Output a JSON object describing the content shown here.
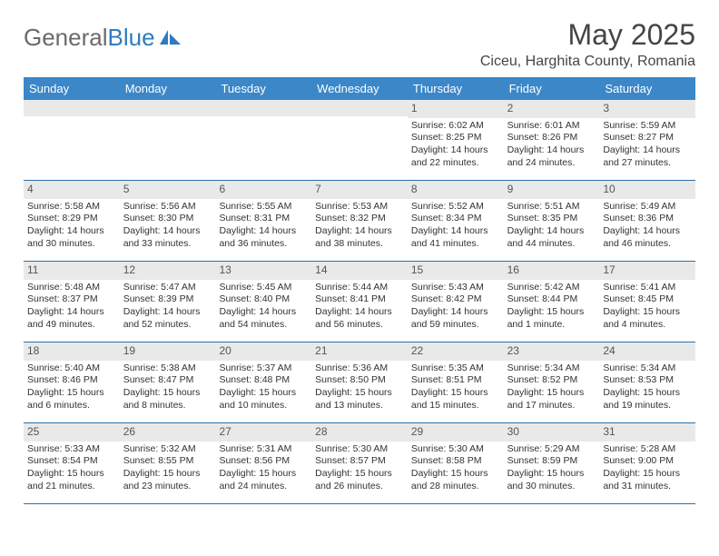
{
  "logo": {
    "text1": "General",
    "text2": "Blue"
  },
  "title": "May 2025",
  "location": "Ciceu, Harghita County, Romania",
  "colors": {
    "header_bg": "#3b87c8",
    "header_text": "#ffffff",
    "daynum_bg": "#e9e9e9",
    "week_border": "#2f6fa8",
    "logo_gray": "#6a6a6a",
    "logo_blue": "#2f7bbf"
  },
  "weekdays": [
    "Sunday",
    "Monday",
    "Tuesday",
    "Wednesday",
    "Thursday",
    "Friday",
    "Saturday"
  ],
  "weeks": [
    [
      {
        "num": "",
        "lines": []
      },
      {
        "num": "",
        "lines": []
      },
      {
        "num": "",
        "lines": []
      },
      {
        "num": "",
        "lines": []
      },
      {
        "num": "1",
        "lines": [
          "Sunrise: 6:02 AM",
          "Sunset: 8:25 PM",
          "Daylight: 14 hours",
          "and 22 minutes."
        ]
      },
      {
        "num": "2",
        "lines": [
          "Sunrise: 6:01 AM",
          "Sunset: 8:26 PM",
          "Daylight: 14 hours",
          "and 24 minutes."
        ]
      },
      {
        "num": "3",
        "lines": [
          "Sunrise: 5:59 AM",
          "Sunset: 8:27 PM",
          "Daylight: 14 hours",
          "and 27 minutes."
        ]
      }
    ],
    [
      {
        "num": "4",
        "lines": [
          "Sunrise: 5:58 AM",
          "Sunset: 8:29 PM",
          "Daylight: 14 hours",
          "and 30 minutes."
        ]
      },
      {
        "num": "5",
        "lines": [
          "Sunrise: 5:56 AM",
          "Sunset: 8:30 PM",
          "Daylight: 14 hours",
          "and 33 minutes."
        ]
      },
      {
        "num": "6",
        "lines": [
          "Sunrise: 5:55 AM",
          "Sunset: 8:31 PM",
          "Daylight: 14 hours",
          "and 36 minutes."
        ]
      },
      {
        "num": "7",
        "lines": [
          "Sunrise: 5:53 AM",
          "Sunset: 8:32 PM",
          "Daylight: 14 hours",
          "and 38 minutes."
        ]
      },
      {
        "num": "8",
        "lines": [
          "Sunrise: 5:52 AM",
          "Sunset: 8:34 PM",
          "Daylight: 14 hours",
          "and 41 minutes."
        ]
      },
      {
        "num": "9",
        "lines": [
          "Sunrise: 5:51 AM",
          "Sunset: 8:35 PM",
          "Daylight: 14 hours",
          "and 44 minutes."
        ]
      },
      {
        "num": "10",
        "lines": [
          "Sunrise: 5:49 AM",
          "Sunset: 8:36 PM",
          "Daylight: 14 hours",
          "and 46 minutes."
        ]
      }
    ],
    [
      {
        "num": "11",
        "lines": [
          "Sunrise: 5:48 AM",
          "Sunset: 8:37 PM",
          "Daylight: 14 hours",
          "and 49 minutes."
        ]
      },
      {
        "num": "12",
        "lines": [
          "Sunrise: 5:47 AM",
          "Sunset: 8:39 PM",
          "Daylight: 14 hours",
          "and 52 minutes."
        ]
      },
      {
        "num": "13",
        "lines": [
          "Sunrise: 5:45 AM",
          "Sunset: 8:40 PM",
          "Daylight: 14 hours",
          "and 54 minutes."
        ]
      },
      {
        "num": "14",
        "lines": [
          "Sunrise: 5:44 AM",
          "Sunset: 8:41 PM",
          "Daylight: 14 hours",
          "and 56 minutes."
        ]
      },
      {
        "num": "15",
        "lines": [
          "Sunrise: 5:43 AM",
          "Sunset: 8:42 PM",
          "Daylight: 14 hours",
          "and 59 minutes."
        ]
      },
      {
        "num": "16",
        "lines": [
          "Sunrise: 5:42 AM",
          "Sunset: 8:44 PM",
          "Daylight: 15 hours",
          "and 1 minute."
        ]
      },
      {
        "num": "17",
        "lines": [
          "Sunrise: 5:41 AM",
          "Sunset: 8:45 PM",
          "Daylight: 15 hours",
          "and 4 minutes."
        ]
      }
    ],
    [
      {
        "num": "18",
        "lines": [
          "Sunrise: 5:40 AM",
          "Sunset: 8:46 PM",
          "Daylight: 15 hours",
          "and 6 minutes."
        ]
      },
      {
        "num": "19",
        "lines": [
          "Sunrise: 5:38 AM",
          "Sunset: 8:47 PM",
          "Daylight: 15 hours",
          "and 8 minutes."
        ]
      },
      {
        "num": "20",
        "lines": [
          "Sunrise: 5:37 AM",
          "Sunset: 8:48 PM",
          "Daylight: 15 hours",
          "and 10 minutes."
        ]
      },
      {
        "num": "21",
        "lines": [
          "Sunrise: 5:36 AM",
          "Sunset: 8:50 PM",
          "Daylight: 15 hours",
          "and 13 minutes."
        ]
      },
      {
        "num": "22",
        "lines": [
          "Sunrise: 5:35 AM",
          "Sunset: 8:51 PM",
          "Daylight: 15 hours",
          "and 15 minutes."
        ]
      },
      {
        "num": "23",
        "lines": [
          "Sunrise: 5:34 AM",
          "Sunset: 8:52 PM",
          "Daylight: 15 hours",
          "and 17 minutes."
        ]
      },
      {
        "num": "24",
        "lines": [
          "Sunrise: 5:34 AM",
          "Sunset: 8:53 PM",
          "Daylight: 15 hours",
          "and 19 minutes."
        ]
      }
    ],
    [
      {
        "num": "25",
        "lines": [
          "Sunrise: 5:33 AM",
          "Sunset: 8:54 PM",
          "Daylight: 15 hours",
          "and 21 minutes."
        ]
      },
      {
        "num": "26",
        "lines": [
          "Sunrise: 5:32 AM",
          "Sunset: 8:55 PM",
          "Daylight: 15 hours",
          "and 23 minutes."
        ]
      },
      {
        "num": "27",
        "lines": [
          "Sunrise: 5:31 AM",
          "Sunset: 8:56 PM",
          "Daylight: 15 hours",
          "and 24 minutes."
        ]
      },
      {
        "num": "28",
        "lines": [
          "Sunrise: 5:30 AM",
          "Sunset: 8:57 PM",
          "Daylight: 15 hours",
          "and 26 minutes."
        ]
      },
      {
        "num": "29",
        "lines": [
          "Sunrise: 5:30 AM",
          "Sunset: 8:58 PM",
          "Daylight: 15 hours",
          "and 28 minutes."
        ]
      },
      {
        "num": "30",
        "lines": [
          "Sunrise: 5:29 AM",
          "Sunset: 8:59 PM",
          "Daylight: 15 hours",
          "and 30 minutes."
        ]
      },
      {
        "num": "31",
        "lines": [
          "Sunrise: 5:28 AM",
          "Sunset: 9:00 PM",
          "Daylight: 15 hours",
          "and 31 minutes."
        ]
      }
    ]
  ]
}
